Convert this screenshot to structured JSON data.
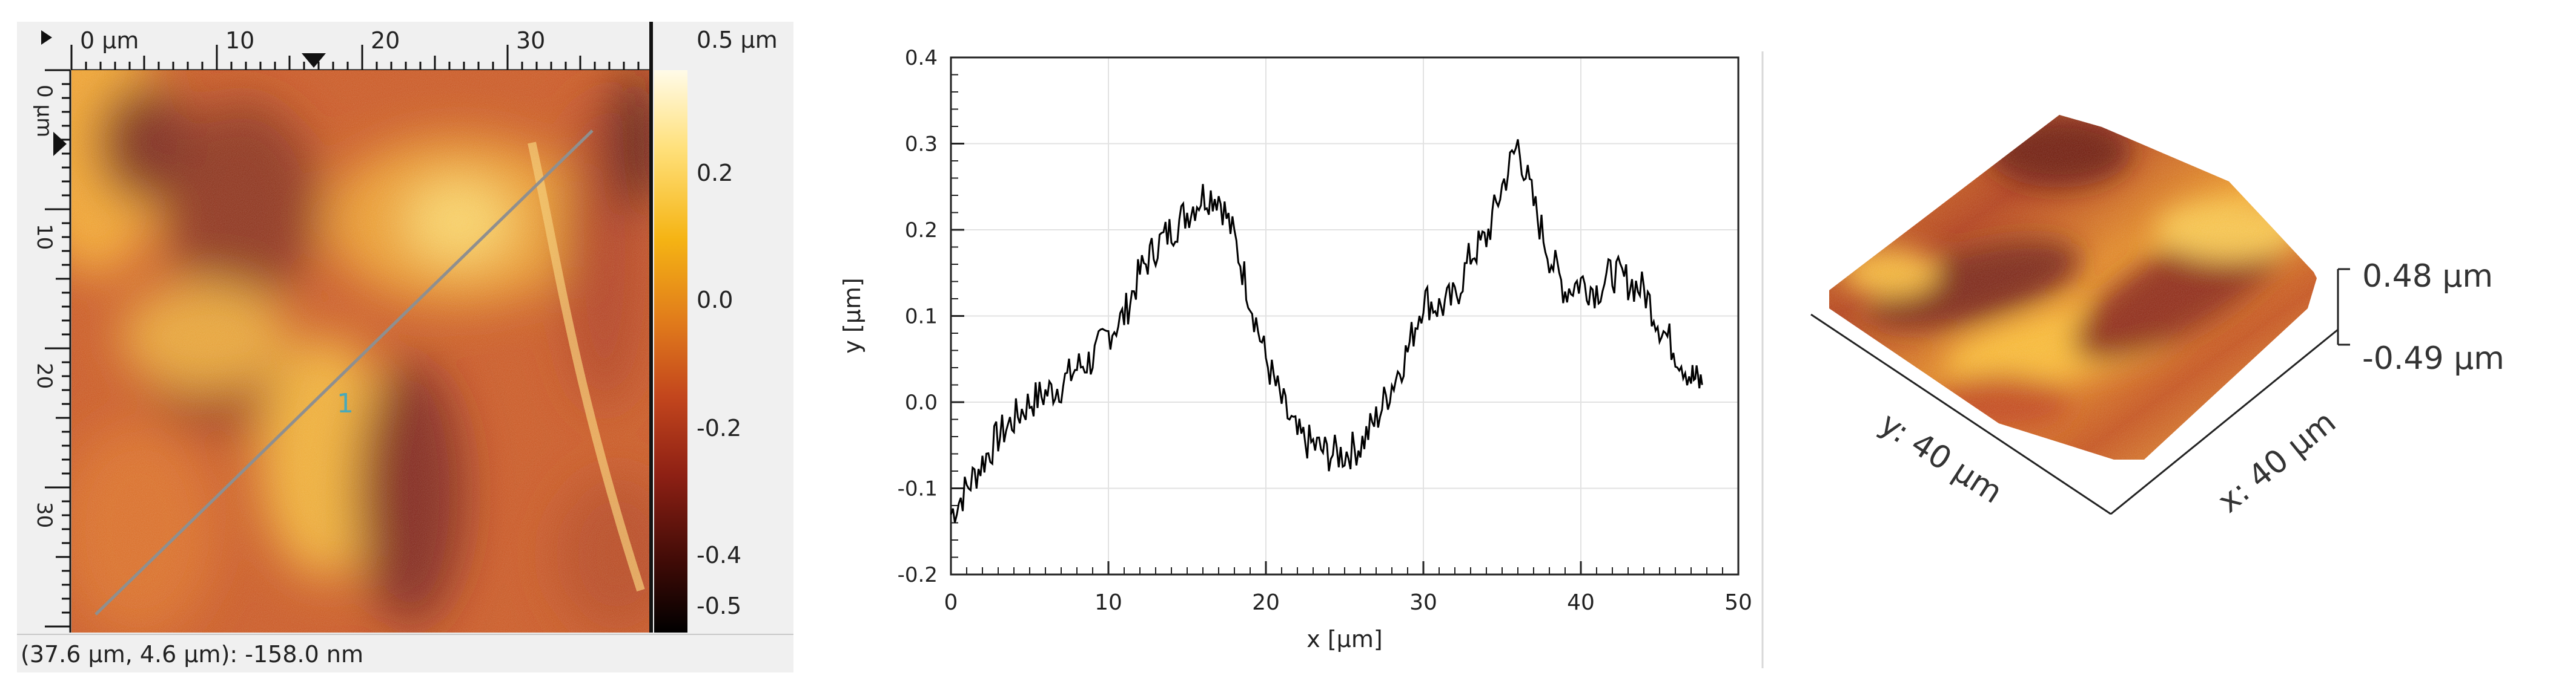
{
  "afm_view": {
    "h_ruler_ticks": [
      "0 µm",
      "10",
      "20",
      "30"
    ],
    "v_ruler_ticks": [
      "0 µm",
      "10",
      "20",
      "30"
    ],
    "profile_line_label": "1",
    "colorbar": {
      "labels": [
        "0.5 µm",
        "0.2",
        "0.0",
        "-0.2",
        "-0.4",
        "-0.5"
      ],
      "colors": [
        "#fffbe8",
        "#f5b414",
        "#c3461d",
        "#8e2014",
        "#000000"
      ]
    },
    "status": "(37.6 µm, 4.6 µm): -158.0 nm"
  },
  "chart_data": {
    "type": "line",
    "title": "",
    "xlabel": "x [µm]",
    "ylabel": "y [µm]",
    "xlim": [
      0,
      50
    ],
    "ylim": [
      -0.2,
      0.4
    ],
    "x_ticks": [
      0,
      10,
      20,
      30,
      40,
      50
    ],
    "y_ticks": [
      -0.2,
      -0.1,
      0.0,
      0.1,
      0.2,
      0.3,
      0.4
    ],
    "y_tick_labels": [
      "-0.2",
      "-0.1",
      "0.0",
      "0.1",
      "0.2",
      "0.3",
      "0.4"
    ],
    "grid": true,
    "color": "#000000",
    "series": [
      {
        "x": [
          0,
          1,
          2,
          3,
          4,
          5,
          6,
          7,
          8,
          9,
          10,
          11,
          12,
          13,
          14,
          15,
          16,
          17,
          18,
          19,
          20,
          21,
          22,
          23,
          24,
          25,
          26,
          27,
          28,
          29,
          30,
          31,
          32,
          33,
          34,
          35,
          36,
          37,
          38,
          39,
          40,
          41,
          42,
          43,
          44,
          45,
          46,
          47,
          47.7
        ],
        "y": [
          -0.13,
          -0.1,
          -0.07,
          -0.04,
          -0.02,
          0.0,
          0.01,
          0.02,
          0.04,
          0.05,
          0.08,
          0.1,
          0.15,
          0.18,
          0.2,
          0.22,
          0.24,
          0.24,
          0.19,
          0.12,
          0.05,
          0.0,
          -0.04,
          -0.05,
          -0.06,
          -0.06,
          -0.05,
          -0.02,
          0.02,
          0.06,
          0.12,
          0.11,
          0.12,
          0.17,
          0.19,
          0.25,
          0.3,
          0.23,
          0.17,
          0.13,
          0.14,
          0.13,
          0.15,
          0.14,
          0.13,
          0.09,
          0.06,
          0.03,
          0.02
        ]
      }
    ]
  },
  "view_3d": {
    "z_top": "0.48 µm",
    "z_bottom": "-0.49 µm",
    "x_axis": "x: 40 µm",
    "y_axis": "y: 40 µm"
  }
}
